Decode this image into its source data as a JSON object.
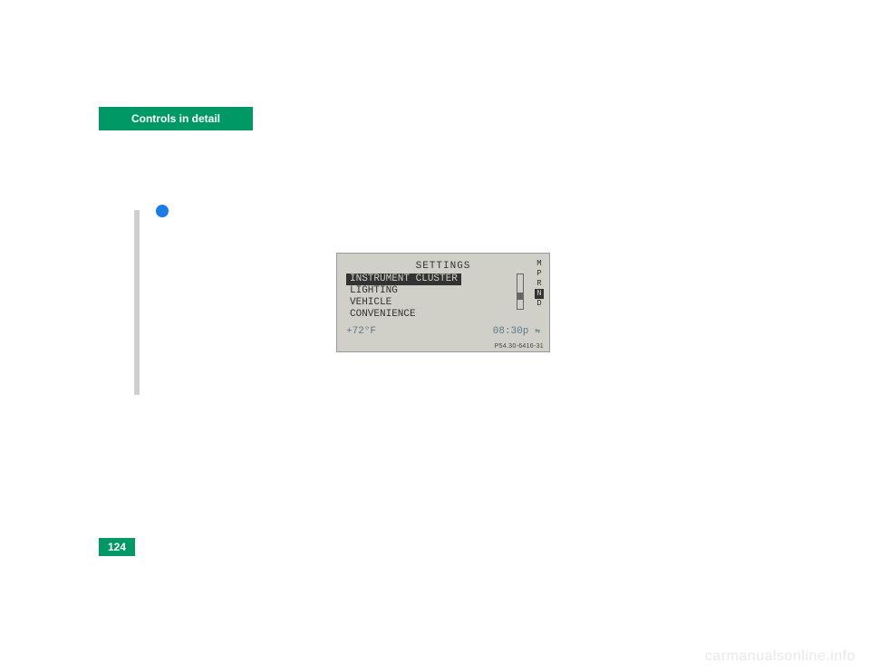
{
  "header": {
    "tab_label": "Controls in detail"
  },
  "display": {
    "title": "SETTINGS",
    "items": [
      {
        "label": "INSTRUMENT CLUSTER",
        "selected": true
      },
      {
        "label": "LIGHTING",
        "selected": false
      },
      {
        "label": "VEHICLE",
        "selected": false
      },
      {
        "label": "CONVENIENCE",
        "selected": false
      }
    ],
    "gear_letters": [
      "M",
      "P",
      "R",
      "N",
      "D"
    ],
    "gear_selected_index": 3,
    "temperature": "+72°F",
    "clock": "08:30p",
    "ref_code": "P54.30-6416-31",
    "background_color": "#d0d0c8",
    "text_color": "#333333",
    "footer_color": "#5b7a8a"
  },
  "page": {
    "number": "124",
    "accent_color": "#009966"
  },
  "watermark": "carmanualsonline.info"
}
